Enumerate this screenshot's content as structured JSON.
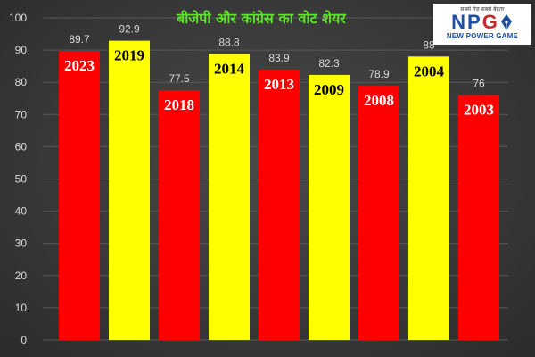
{
  "chart_data": {
    "type": "bar",
    "title": "बीजेपी और कांग्रेस का वोट शेयर",
    "categories": [
      "2023",
      "2019",
      "2018",
      "2014",
      "2013",
      "2009",
      "2008",
      "2004",
      "2003"
    ],
    "values": [
      89.7,
      92.9,
      77.5,
      88.8,
      83.9,
      82.3,
      78.9,
      88,
      76
    ],
    "value_labels": [
      "89.7",
      "92.9",
      "77.5",
      "88.8",
      "83.9",
      "82.3",
      "78.9",
      "88",
      "76"
    ],
    "bar_colors": [
      "#ff0000",
      "#ffff00",
      "#ff0000",
      "#ffff00",
      "#ff0000",
      "#ffff00",
      "#ff0000",
      "#ffff00",
      "#ff0000"
    ],
    "label_colors": [
      "#ffffff",
      "#000000",
      "#ffffff",
      "#000000",
      "#ffffff",
      "#000000",
      "#ffffff",
      "#000000",
      "#ffffff"
    ],
    "ylim": [
      0,
      100
    ],
    "yticks": [
      "0",
      "10",
      "20",
      "30",
      "40",
      "50",
      "60",
      "70",
      "80",
      "90",
      "100"
    ],
    "grid": true,
    "legend": "none"
  },
  "logo": {
    "tagline": "सबसे तेज़ सबसे बेहतर",
    "letters": [
      "N",
      "P",
      "G"
    ],
    "subtitle": "NEW POWER GAME",
    "icon": "pen-nib-icon"
  },
  "colors": {
    "background": "#3a3a3a",
    "gridline": "#595959",
    "title": "#5fe02c",
    "red": "#ff0000",
    "yellow": "#ffff00"
  }
}
